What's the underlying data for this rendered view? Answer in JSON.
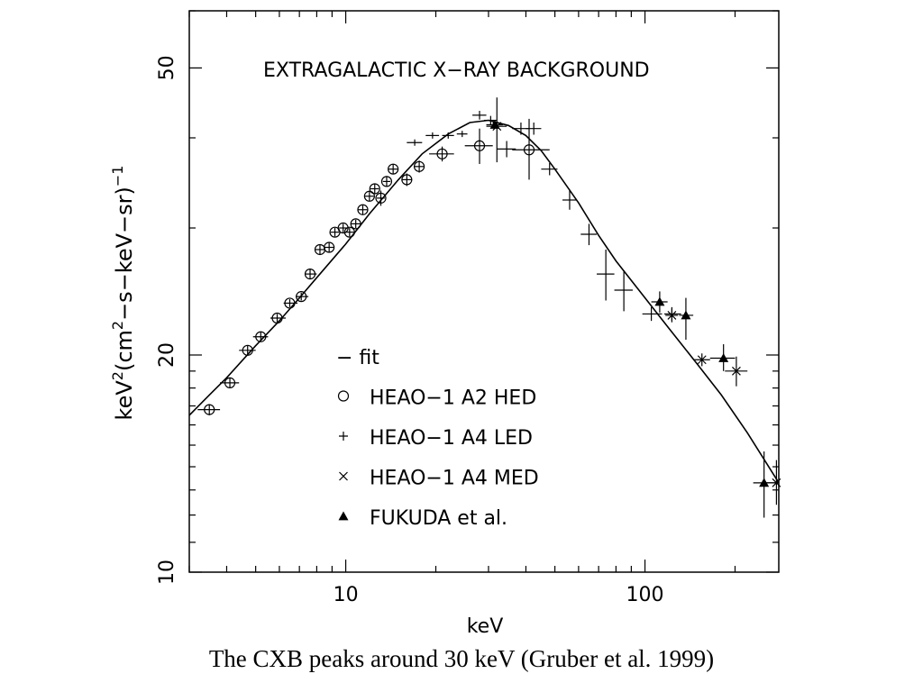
{
  "chart_data": {
    "type": "scatter",
    "title": "EXTRAGALACTIC X−RAY BACKGROUND",
    "xlabel": "keV",
    "ylabel_parts": {
      "base": "keV",
      "sup1": "2",
      "mid": "(cm",
      "sup2": "2",
      "tail": "−s−keV−sr)",
      "sup3": "−1"
    },
    "x_scale": "log",
    "y_scale": "log",
    "xlim": [
      3,
      280
    ],
    "ylim": [
      10,
      60
    ],
    "x_ticks": [
      {
        "value": 10,
        "label": "10"
      },
      {
        "value": 100,
        "label": "100"
      }
    ],
    "y_ticks": [
      {
        "value": 10,
        "label": "10"
      },
      {
        "value": 20,
        "label": "20"
      },
      {
        "value": 50,
        "label": "50"
      }
    ],
    "grid": false,
    "legend_position": "bottom-center",
    "legend": [
      {
        "symbol": "line",
        "label": "− fit"
      },
      {
        "symbol": "circle",
        "label": "HEAO−1 A2 HED"
      },
      {
        "symbol": "plus",
        "label": "HEAO−1 A4 LED"
      },
      {
        "symbol": "cross",
        "label": "HEAO−1 A4 MED"
      },
      {
        "symbol": "triangle",
        "label": "FUKUDA et al."
      }
    ],
    "series": [
      {
        "name": "fit",
        "kind": "line",
        "x": [
          3,
          3.5,
          4,
          5,
          6,
          7,
          8,
          10,
          12,
          15,
          18,
          22,
          26,
          30,
          35,
          40,
          45,
          50,
          60,
          70,
          80,
          100,
          120,
          150,
          180,
          220,
          280
        ],
        "y": [
          16.5,
          17.6,
          18.6,
          20.6,
          22.3,
          24.0,
          25.6,
          28.5,
          31.4,
          35.0,
          38.0,
          40.5,
          42.0,
          42.3,
          41.6,
          40.3,
          38.4,
          36.2,
          32.5,
          29.3,
          27.0,
          24.0,
          21.8,
          19.4,
          17.6,
          15.6,
          13.3
        ]
      },
      {
        "name": "HEAO−1 A2 HED",
        "kind": "circle",
        "points": [
          {
            "x": 3.5,
            "y": 16.8,
            "xerr": [
              3.2,
              3.8
            ],
            "yerr": [
              16.5,
              17.1
            ]
          },
          {
            "x": 4.1,
            "y": 18.3,
            "xerr": [
              3.8,
              4.4
            ],
            "yerr": [
              18.0,
              18.6
            ]
          },
          {
            "x": 4.7,
            "y": 20.3,
            "xerr": [
              4.4,
              5.0
            ],
            "yerr": [
              20.0,
              20.6
            ]
          },
          {
            "x": 5.2,
            "y": 21.2,
            "xerr": [
              4.9,
              5.5
            ],
            "yerr": [
              20.9,
              21.5
            ]
          },
          {
            "x": 5.9,
            "y": 22.5,
            "xerr": [
              5.6,
              6.3
            ],
            "yerr": [
              22.2,
              22.8
            ]
          },
          {
            "x": 6.5,
            "y": 23.6,
            "xerr": [
              6.2,
              6.9
            ],
            "yerr": [
              23.3,
              23.9
            ]
          },
          {
            "x": 7.1,
            "y": 24.1,
            "xerr": [
              6.8,
              7.5
            ],
            "yerr": [
              23.8,
              24.4
            ]
          },
          {
            "x": 7.6,
            "y": 25.9,
            "xerr": [
              7.3,
              8.0
            ],
            "yerr": [
              25.5,
              26.3
            ]
          },
          {
            "x": 8.2,
            "y": 28.0,
            "xerr": [
              7.9,
              8.5
            ],
            "yerr": [
              27.6,
              28.4
            ]
          },
          {
            "x": 8.8,
            "y": 28.2,
            "xerr": [
              8.5,
              9.1
            ],
            "yerr": [
              27.8,
              28.6
            ]
          },
          {
            "x": 9.2,
            "y": 29.6,
            "xerr": [
              8.9,
              9.5
            ],
            "yerr": [
              29.2,
              30.0
            ]
          },
          {
            "x": 9.8,
            "y": 30.0,
            "xerr": [
              9.5,
              10.2
            ],
            "yerr": [
              29.6,
              30.4
            ]
          },
          {
            "x": 10.3,
            "y": 29.6,
            "xerr": [
              9.9,
              10.7
            ],
            "yerr": [
              29.2,
              30.0
            ]
          },
          {
            "x": 10.8,
            "y": 30.4,
            "xerr": [
              10.4,
              11.2
            ],
            "yerr": [
              30.0,
              30.8
            ]
          },
          {
            "x": 11.4,
            "y": 31.8,
            "xerr": [
              11.0,
              11.8
            ],
            "yerr": [
              31.3,
              32.3
            ]
          },
          {
            "x": 12.0,
            "y": 33.2,
            "xerr": [
              11.6,
              12.4
            ],
            "yerr": [
              32.7,
              33.7
            ]
          },
          {
            "x": 12.5,
            "y": 34.0,
            "xerr": [
              12.1,
              12.9
            ],
            "yerr": [
              33.5,
              34.5
            ]
          },
          {
            "x": 13.1,
            "y": 33.0,
            "xerr": [
              12.7,
              13.5
            ],
            "yerr": [
              32.2,
              33.8
            ]
          },
          {
            "x": 13.7,
            "y": 34.8,
            "xerr": [
              13.3,
              14.1
            ],
            "yerr": [
              34.2,
              35.4
            ]
          },
          {
            "x": 14.4,
            "y": 36.2,
            "xerr": [
              13.9,
              14.9
            ],
            "yerr": [
              35.6,
              36.8
            ]
          },
          {
            "x": 16.0,
            "y": 35.0,
            "xerr": [
              15.4,
              16.6
            ],
            "yerr": [
              34.3,
              35.7
            ]
          },
          {
            "x": 17.6,
            "y": 36.5,
            "xerr": [
              16.9,
              18.3
            ],
            "yerr": [
              35.8,
              37.2
            ]
          },
          {
            "x": 21.0,
            "y": 38.0,
            "xerr": [
              19.0,
              23.0
            ],
            "yerr": [
              37.1,
              38.9
            ]
          },
          {
            "x": 28.0,
            "y": 39.0,
            "xerr": [
              25.0,
              31.0
            ],
            "yerr": [
              36.8,
              41.2
            ]
          },
          {
            "x": 41.0,
            "y": 38.5,
            "xerr": [
              36.0,
              48.0
            ],
            "yerr": [
              35.0,
              42.5
            ]
          }
        ]
      },
      {
        "name": "HEAO−1 A4 LED",
        "kind": "plus",
        "points": [
          {
            "x": 17.0,
            "y": 39.4,
            "xerr": [
              16.0,
              18.0
            ],
            "yerr": [
              39.0,
              39.8
            ]
          },
          {
            "x": 19.5,
            "y": 40.3,
            "xerr": [
              18.5,
              20.5
            ],
            "yerr": [
              39.9,
              40.7
            ]
          },
          {
            "x": 22.0,
            "y": 40.3,
            "xerr": [
              21.0,
              23.0
            ],
            "yerr": [
              39.9,
              40.7
            ]
          },
          {
            "x": 24.5,
            "y": 40.5,
            "xerr": [
              23.5,
              25.5
            ],
            "yerr": [
              40.1,
              40.9
            ]
          },
          {
            "x": 28.0,
            "y": 43.0,
            "xerr": [
              26.5,
              29.5
            ],
            "yerr": [
              42.4,
              43.6
            ]
          },
          {
            "x": 30.5,
            "y": 42.3,
            "xerr": [
              29.0,
              32.0
            ],
            "yerr": [
              41.7,
              42.9
            ]
          },
          {
            "x": 34.5,
            "y": 38.6,
            "xerr": [
              32.0,
              37.0
            ],
            "yerr": [
              37.6,
              39.6
            ]
          },
          {
            "x": 38.5,
            "y": 41.2,
            "xerr": [
              36.0,
              41.0
            ],
            "yerr": [
              40.4,
              42.0
            ]
          },
          {
            "x": 42.5,
            "y": 41.2,
            "xerr": [
              40.0,
              45.0
            ],
            "yerr": [
              40.4,
              42.0
            ]
          },
          {
            "x": 48.0,
            "y": 36.2,
            "xerr": [
              45.0,
              51.0
            ],
            "yerr": [
              35.5,
              36.9
            ]
          },
          {
            "x": 56.0,
            "y": 32.8,
            "xerr": [
              53.0,
              59.0
            ],
            "yerr": [
              31.8,
              33.8
            ]
          },
          {
            "x": 65.0,
            "y": 29.4,
            "xerr": [
              61.0,
              69.0
            ],
            "yerr": [
              28.4,
              30.4
            ]
          },
          {
            "x": 74.0,
            "y": 25.9,
            "xerr": [
              69.0,
              79.0
            ],
            "yerr": [
              23.8,
              28.0
            ]
          },
          {
            "x": 85.0,
            "y": 24.6,
            "xerr": [
              79.0,
              91.0
            ],
            "yerr": [
              23.0,
              26.2
            ]
          },
          {
            "x": 105.0,
            "y": 22.8,
            "xerr": [
              98.0,
              114.0
            ],
            "yerr": [
              22.3,
              23.3
            ]
          },
          {
            "x": 123.0,
            "y": 22.8,
            "xerr": [
              116.0,
              132.0
            ],
            "yerr": [
              22.3,
              23.3
            ]
          }
        ]
      },
      {
        "name": "HEAO−1 A4 MED",
        "kind": "cross",
        "points": [
          {
            "x": 32.0,
            "y": 41.5,
            "xerr": [
              29.5,
              34.5
            ],
            "yerr": [
              37.0,
              45.5
            ]
          },
          {
            "x": 123.0,
            "y": 22.7,
            "xerr": [
              117.0,
              129.0
            ],
            "yerr": [
              22.2,
              23.2
            ]
          },
          {
            "x": 155.0,
            "y": 19.7,
            "xerr": [
              145.0,
              165.0
            ],
            "yerr": [
              19.3,
              20.1
            ]
          },
          {
            "x": 202.0,
            "y": 19.0,
            "xerr": [
              185.0,
              220.0
            ],
            "yerr": [
              18.1,
              19.9
            ]
          },
          {
            "x": 275.0,
            "y": 13.3,
            "xerr": [
              255.0,
              290.0
            ],
            "yerr": [
              12.4,
              14.3
            ]
          }
        ]
      },
      {
        "name": "FUKUDA et al.",
        "kind": "triangle",
        "points": [
          {
            "x": 31.5,
            "y": 41.7,
            "xerr": [
              29.5,
              33.5
            ],
            "yerr": [
              41.3,
              42.1
            ]
          },
          {
            "x": 112.0,
            "y": 23.7,
            "xerr": [
              105.0,
              119.0
            ],
            "yerr": [
              22.9,
              24.5
            ]
          },
          {
            "x": 137.0,
            "y": 22.7,
            "xerr": [
              130.0,
              145.0
            ],
            "yerr": [
              21.0,
              24.0
            ]
          },
          {
            "x": 183.0,
            "y": 19.8,
            "xerr": [
              165.0,
              200.0
            ],
            "yerr": [
              19.0,
              20.7
            ]
          },
          {
            "x": 250.0,
            "y": 13.3,
            "xerr": [
              230.0,
              275.0
            ],
            "yerr": [
              11.9,
              14.7
            ]
          }
        ]
      }
    ]
  },
  "caption": "The CXB peaks around 30 keV (Gruber et al. 1999)"
}
